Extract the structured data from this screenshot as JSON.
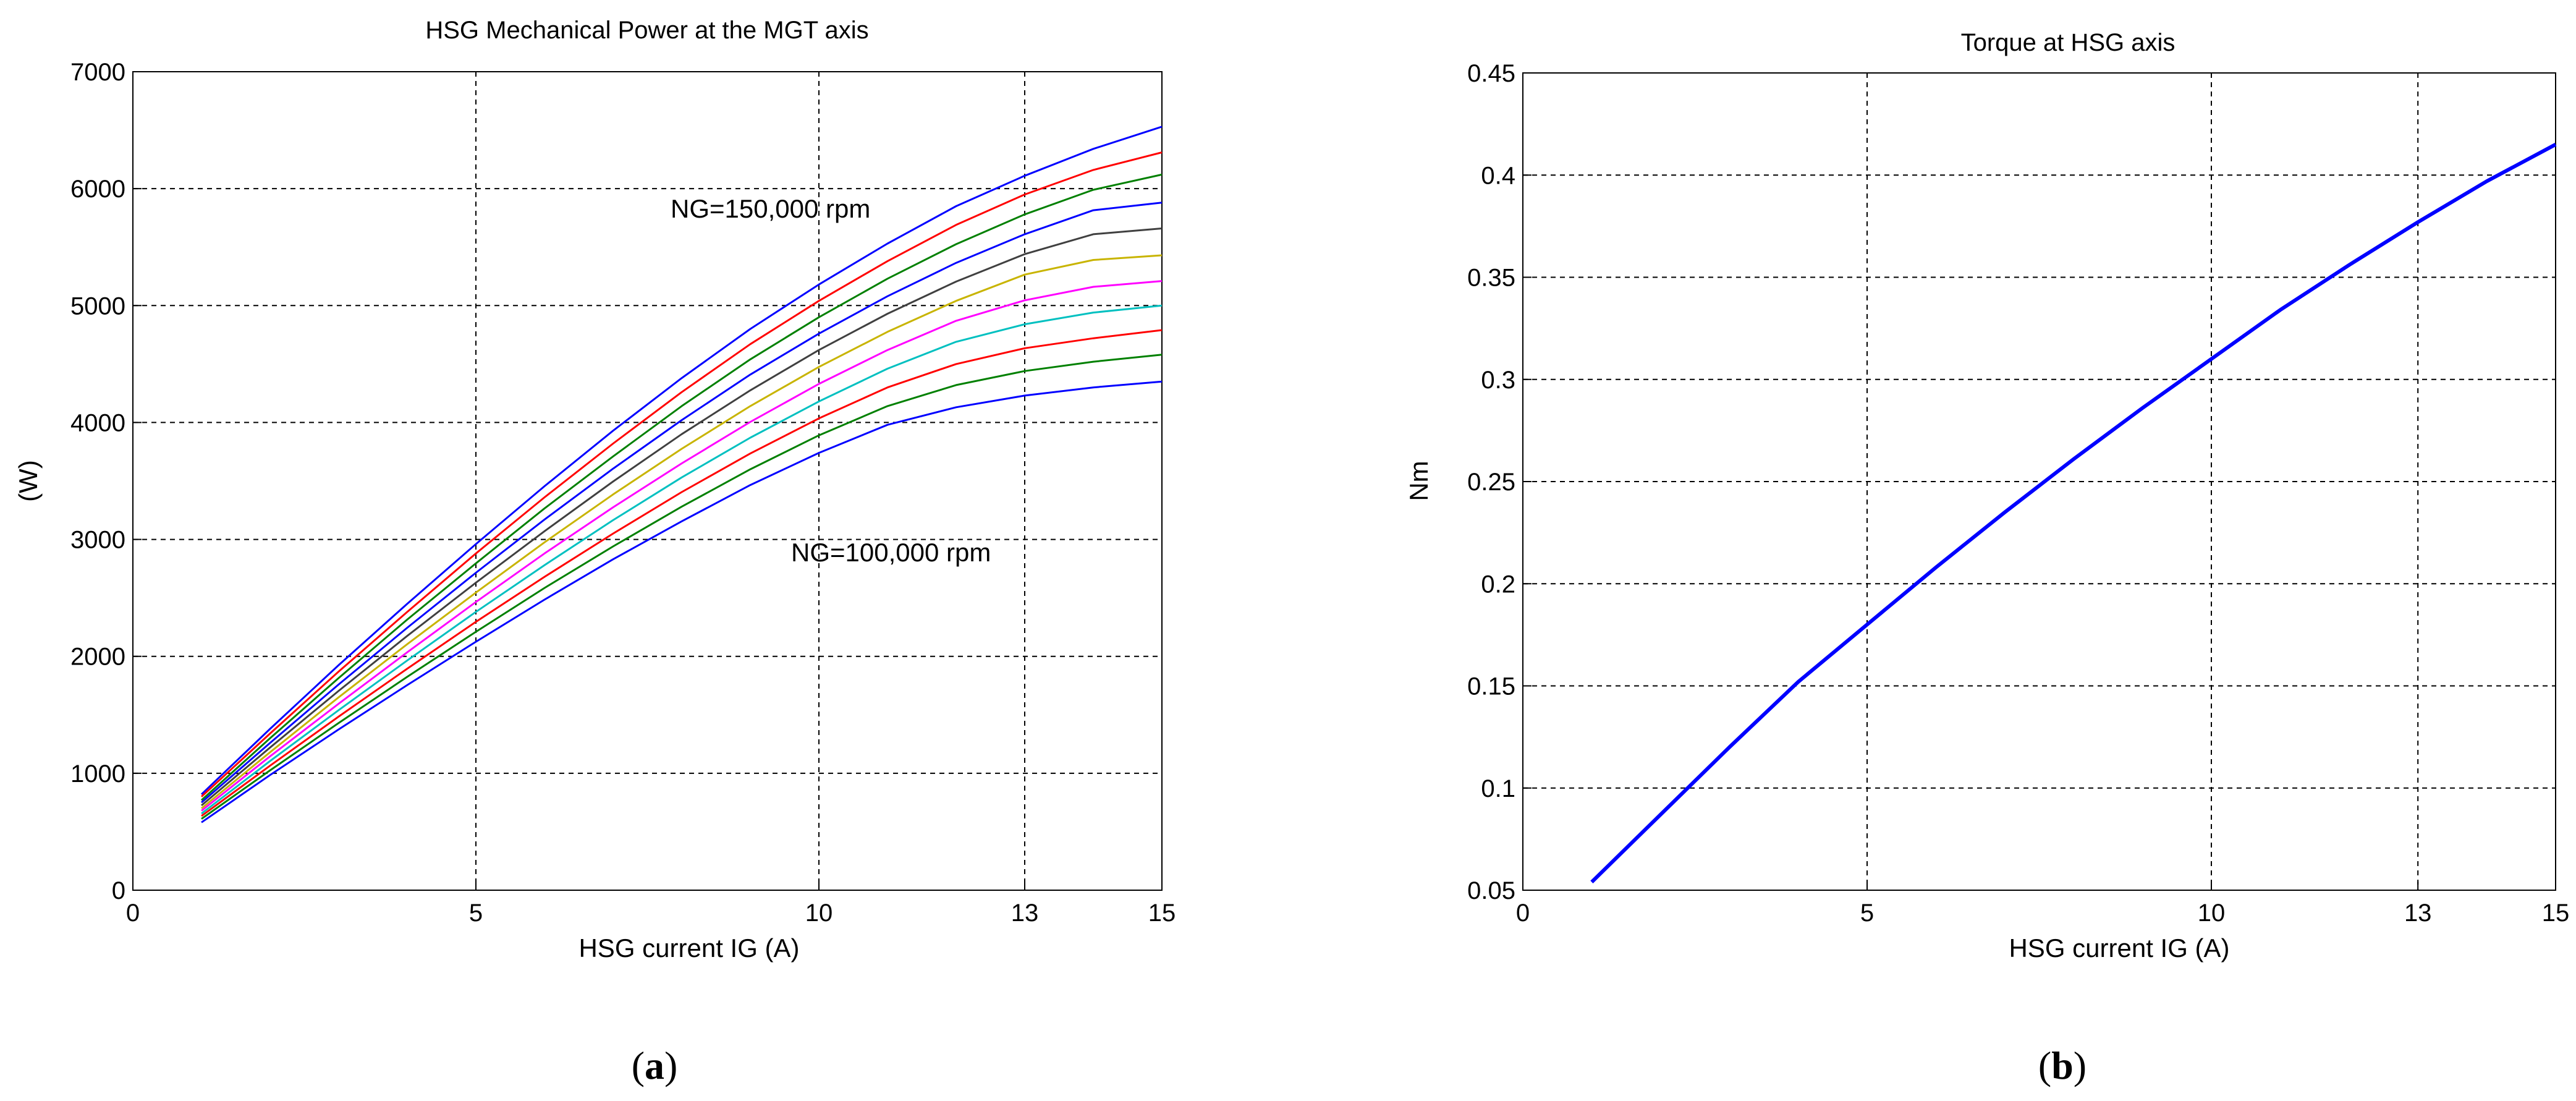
{
  "panels": [
    {
      "label_open": "(",
      "label_letter": "a",
      "label_close": ")"
    },
    {
      "label_open": "(",
      "label_letter": "b",
      "label_close": ")"
    }
  ],
  "chart_data": [
    {
      "type": "line",
      "title": "HSG Mechanical Power at the MGT axis",
      "xlabel": "HSG current IG (A)",
      "ylabel": "(W)",
      "xlim": [
        0,
        15
      ],
      "ylim": [
        0,
        7000
      ],
      "xticks": [
        0,
        5,
        10,
        13,
        15
      ],
      "yticks": [
        0,
        1000,
        2000,
        3000,
        4000,
        5000,
        6000,
        7000
      ],
      "grid": true,
      "annotations": [
        {
          "text": "NG=150,000 rpm",
          "x": 7.8,
          "y": 5850
        },
        {
          "text": "NG=100,000 rpm",
          "x": 9.6,
          "y": 2850
        }
      ],
      "x": [
        1,
        2,
        3,
        4,
        5,
        6,
        7,
        8,
        9,
        10,
        11,
        12,
        13,
        14,
        15
      ],
      "series": [
        {
          "color": "#0000ff",
          "values": [
            820,
            1380,
            1925,
            2450,
            2960,
            3455,
            3930,
            4380,
            4800,
            5180,
            5530,
            5850,
            6110,
            6340,
            6530
          ]
        },
        {
          "color": "#ff0000",
          "values": [
            800,
            1340,
            1870,
            2380,
            2880,
            3360,
            3820,
            4260,
            4670,
            5040,
            5380,
            5690,
            5950,
            6160,
            6310
          ]
        },
        {
          "color": "#008000",
          "values": [
            770,
            1300,
            1815,
            2315,
            2795,
            3265,
            3710,
            4140,
            4540,
            4900,
            5230,
            5525,
            5780,
            5990,
            6120
          ]
        },
        {
          "color": "#0000ff",
          "values": [
            750,
            1260,
            1760,
            2245,
            2715,
            3170,
            3605,
            4020,
            4410,
            4760,
            5080,
            5365,
            5610,
            5815,
            5880
          ]
        },
        {
          "color": "#404040",
          "values": [
            725,
            1220,
            1705,
            2175,
            2630,
            3070,
            3495,
            3900,
            4275,
            4620,
            4930,
            5205,
            5440,
            5610,
            5660
          ]
        },
        {
          "color": "#c8b400",
          "values": [
            700,
            1180,
            1650,
            2105,
            2545,
            2975,
            3385,
            3775,
            4140,
            4475,
            4775,
            5040,
            5265,
            5390,
            5430
          ]
        },
        {
          "color": "#ff00ff",
          "values": [
            680,
            1145,
            1595,
            2035,
            2465,
            2880,
            3275,
            3650,
            4005,
            4330,
            4620,
            4870,
            5045,
            5160,
            5210
          ]
        },
        {
          "color": "#00c0c0",
          "values": [
            655,
            1105,
            1540,
            1965,
            2380,
            2780,
            3165,
            3530,
            3870,
            4180,
            4460,
            4690,
            4840,
            4940,
            5000
          ]
        },
        {
          "color": "#ff0000",
          "values": [
            635,
            1065,
            1485,
            1895,
            2295,
            2680,
            3050,
            3405,
            3735,
            4035,
            4300,
            4500,
            4635,
            4720,
            4790
          ]
        },
        {
          "color": "#008000",
          "values": [
            610,
            1025,
            1430,
            1825,
            2210,
            2585,
            2940,
            3280,
            3600,
            3890,
            4140,
            4320,
            4440,
            4520,
            4580
          ]
        },
        {
          "color": "#0000ff",
          "values": [
            580,
            985,
            1375,
            1755,
            2125,
            2485,
            2830,
            3155,
            3465,
            3740,
            3980,
            4130,
            4230,
            4300,
            4350
          ]
        }
      ]
    },
    {
      "type": "line",
      "title": "Torque at HSG axis",
      "xlabel": "HSG current IG (A)",
      "ylabel": "Nm",
      "xlim": [
        0,
        15
      ],
      "ylim": [
        0.05,
        0.45
      ],
      "xticks": [
        0,
        5,
        10,
        13,
        15
      ],
      "yticks": [
        0.05,
        0.1,
        0.15,
        0.2,
        0.25,
        0.3,
        0.35,
        0.4,
        0.45
      ],
      "ytick_labels": [
        "0.05",
        "0.1",
        "0.15",
        "0.2",
        "0.25",
        "0.3",
        "0.35",
        "0.4",
        "0.45"
      ],
      "grid": true,
      "x": [
        1,
        2,
        3,
        4,
        5,
        6,
        7,
        8,
        9,
        10,
        11,
        12,
        13,
        14,
        15
      ],
      "series": [
        {
          "color": "#0000ff",
          "values": [
            0.054,
            0.087,
            0.12,
            0.152,
            0.18,
            0.208,
            0.235,
            0.261,
            0.286,
            0.31,
            0.334,
            0.356,
            0.377,
            0.397,
            0.415
          ]
        }
      ]
    }
  ]
}
